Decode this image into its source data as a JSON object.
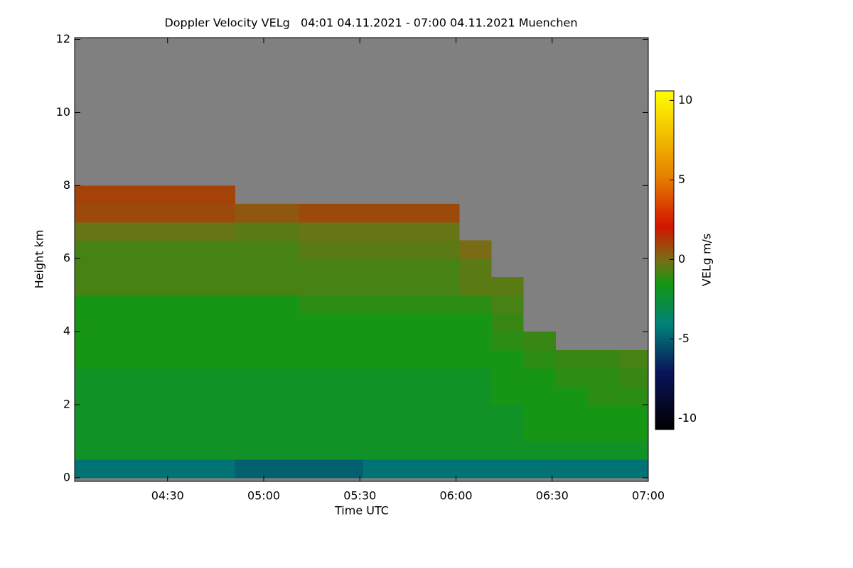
{
  "chart_data": {
    "type": "heatmap",
    "title": "Doppler Velocity VELg   04:01 04.11.2021 - 07:00 04.11.2021 Muenchen",
    "x_label": "Time UTC",
    "y_label": "Height km",
    "colorbar_label": "VELg m/s",
    "xlim": [
      241,
      420
    ],
    "ylim": [
      -0.1,
      12.05
    ],
    "zlim": [
      -10.7,
      10.6
    ],
    "xticks": [
      {
        "value": 270,
        "label": "04:30"
      },
      {
        "value": 300,
        "label": "05:00"
      },
      {
        "value": 330,
        "label": "05:30"
      },
      {
        "value": 360,
        "label": "06:00"
      },
      {
        "value": 390,
        "label": "06:30"
      },
      {
        "value": 420,
        "label": "07:00"
      }
    ],
    "yticks": [
      0,
      2,
      4,
      6,
      8,
      10,
      12
    ],
    "zticks": [
      -10,
      -5,
      0,
      5,
      10
    ],
    "x": [
      246,
      256,
      266,
      276,
      286,
      296,
      306,
      316,
      326,
      336,
      346,
      356,
      366,
      376,
      386,
      396,
      406,
      416
    ],
    "y": [
      0.25,
      0.75,
      1.25,
      1.75,
      2.25,
      2.75,
      3.25,
      3.75,
      4.25,
      4.75,
      5.25,
      5.75,
      6.25,
      6.75,
      7.25,
      7.75
    ],
    "z": [
      [
        -4.5,
        -4.5,
        -4.5,
        -4.5,
        -4.5,
        -5,
        -5,
        -5,
        -5,
        -4.5,
        -4.5,
        -4.5,
        -4.5,
        -4.5,
        -4.5,
        -4.5,
        -4.5,
        -4.5
      ],
      [
        -2,
        -2,
        -2,
        -2,
        -2,
        -2,
        -2,
        -2,
        -2,
        -2,
        -2,
        -2,
        -2,
        -2,
        -2,
        -2,
        -2,
        -2
      ],
      [
        -2,
        -2,
        -2,
        -2,
        -2,
        -2,
        -2,
        -2,
        -2,
        -2,
        -2,
        -2,
        -2,
        -2,
        -1.5,
        -1.5,
        -1.5,
        -1.5
      ],
      [
        -2,
        -2,
        -2,
        -2,
        -2,
        -2,
        -2,
        -2,
        -2,
        -2,
        -2,
        -2,
        -2,
        -2,
        -1.5,
        -1.5,
        -1.5,
        -1.5
      ],
      [
        -2,
        -2,
        -2,
        -2,
        -2,
        -2,
        -2,
        -2,
        -2,
        -2,
        -2,
        -2,
        -2,
        -1.5,
        -1.5,
        -1.5,
        -1.2,
        -1.2
      ],
      [
        -2,
        -2,
        -2,
        -2,
        -2,
        -2,
        -2,
        -2,
        -2,
        -2,
        -2,
        -2,
        -2,
        -1.5,
        -1.5,
        -1.2,
        -1.2,
        -1
      ],
      [
        -1.5,
        -1.5,
        -1.5,
        -1.5,
        -1.5,
        -1.5,
        -1.5,
        -1.5,
        -1.5,
        -1.5,
        -1.5,
        -1.5,
        -1.5,
        -1.5,
        -1.2,
        -1,
        -1,
        -0.8
      ],
      [
        -1.5,
        -1.5,
        -1.5,
        -1.5,
        -1.5,
        -1.5,
        -1.5,
        -1.5,
        -1.5,
        -1.5,
        -1.5,
        -1.5,
        -1.5,
        -1.2,
        -1,
        null,
        null,
        null
      ],
      [
        -1.5,
        -1.5,
        -1.5,
        -1.5,
        -1.5,
        -1.5,
        -1.5,
        -1.5,
        -1.5,
        -1.5,
        -1.5,
        -1.5,
        -1.5,
        -1,
        null,
        null,
        null,
        null
      ],
      [
        -1.5,
        -1.5,
        -1.5,
        -1.5,
        -1.5,
        -1.5,
        -1.5,
        -1.2,
        -1.2,
        -1.2,
        -1.2,
        -1.2,
        -1.2,
        -0.8,
        null,
        null,
        null,
        null
      ],
      [
        -0.8,
        -0.8,
        -0.8,
        -0.8,
        -0.8,
        -0.8,
        -0.8,
        -0.8,
        -0.8,
        -0.8,
        -0.8,
        -0.8,
        -0.5,
        -0.5,
        null,
        null,
        null,
        null
      ],
      [
        -0.8,
        -0.8,
        -0.8,
        -0.8,
        -0.8,
        -0.8,
        -0.8,
        -0.8,
        -0.8,
        -0.8,
        -0.8,
        -0.8,
        -0.5,
        null,
        null,
        null,
        null,
        null
      ],
      [
        -0.8,
        -0.8,
        -0.8,
        -0.8,
        -0.8,
        -0.8,
        -0.8,
        -0.5,
        -0.5,
        -0.5,
        -0.5,
        -0.5,
        0,
        null,
        null,
        null,
        null,
        null
      ],
      [
        -0.3,
        -0.3,
        -0.3,
        -0.3,
        -0.3,
        -0.5,
        -0.5,
        -0.3,
        -0.3,
        -0.3,
        -0.3,
        -0.3,
        null,
        null,
        null,
        null,
        null,
        null
      ],
      [
        0.8,
        0.8,
        0.8,
        0.8,
        0.8,
        0.5,
        0.5,
        0.8,
        0.8,
        0.8,
        0.8,
        0.8,
        null,
        null,
        null,
        null,
        null,
        null
      ],
      [
        1,
        1,
        1,
        1,
        1,
        null,
        null,
        null,
        null,
        null,
        null,
        null,
        null,
        null,
        null,
        null,
        null,
        null
      ]
    ]
  }
}
